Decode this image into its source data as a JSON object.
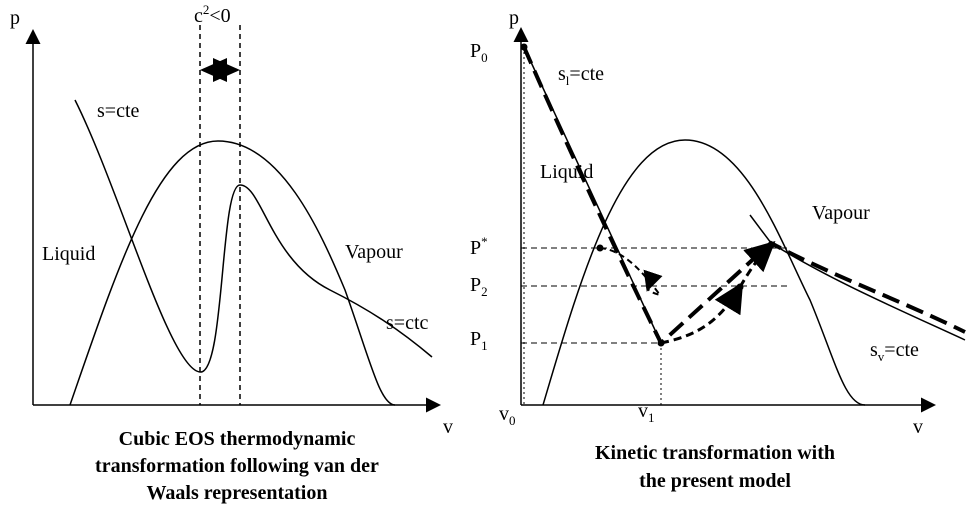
{
  "left": {
    "axis_y": "p",
    "axis_x": "v",
    "annotation": {
      "base": "c",
      "sup": "2",
      "rest": "<0"
    },
    "liquid": "Liquid",
    "vapour": "Vapour",
    "isentrope_top": "s=cte",
    "isentrope_right": "s=ctc",
    "caption": [
      "Cubic EOS thermodynamic",
      "transformation following van der",
      "Waals representation"
    ]
  },
  "right": {
    "axis_y": "p",
    "axis_x": "v",
    "p0": {
      "base": "P",
      "sub": "0"
    },
    "pstar": {
      "base": "P",
      "sup": "*"
    },
    "p2": {
      "base": "P",
      "sub": "2"
    },
    "p1": {
      "base": "P",
      "sub": "1"
    },
    "v0": {
      "base": "v",
      "sub": "0"
    },
    "v1": {
      "base": "v",
      "sub": "1"
    },
    "liquid": "Liquid",
    "vapour": "Vapour",
    "sl": {
      "base": "s",
      "sub": "l",
      "rest": "=cte"
    },
    "sv": {
      "base": "s",
      "sub": "v",
      "rest": "=cte"
    },
    "caption": [
      "Kinetic transformation with",
      "the present model"
    ]
  }
}
